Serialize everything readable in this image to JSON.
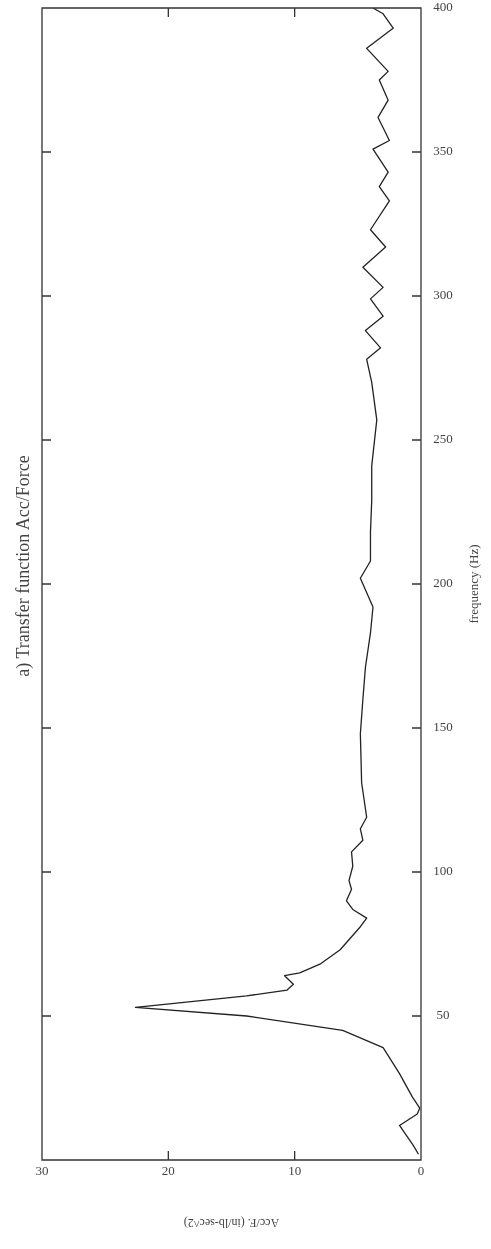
{
  "chart_data": {
    "type": "line",
    "title": "a) Transfer function Acc/Force",
    "xlabel": "Acc/F. (in/lb-sec^2)",
    "ylabel": "frequency (Hz)",
    "xlim": [
      30,
      0
    ],
    "xticks": [
      0,
      10,
      20,
      30
    ],
    "ylim": [
      0,
      400
    ],
    "yticks": [
      50,
      100,
      150,
      200,
      250,
      300,
      350,
      400
    ],
    "marker": "none",
    "line_style": "solid",
    "series": [
      {
        "color": "#222222",
        "x": [
          0.2,
          0.6,
          1.7,
          0.3,
          0.1,
          0.7,
          1.7,
          3.0,
          6.2,
          13.8,
          22.6,
          13.8,
          10.6,
          10.1,
          10.8,
          9.6,
          8.0,
          6.4,
          4.8,
          4.3,
          5.4,
          5.9,
          5.5,
          5.7,
          5.4,
          5.5,
          4.6,
          4.8,
          4.3,
          4.7,
          4.8,
          4.6,
          4.4,
          4.0,
          3.8,
          4.8,
          4.0,
          4.0,
          3.9,
          3.9,
          3.5,
          3.9,
          4.3,
          3.2,
          4.4,
          3.0,
          4.0,
          3.0,
          4.6,
          2.8,
          4.0,
          2.5,
          3.3,
          2.6,
          3.8,
          2.5,
          3.4,
          2.6,
          3.3,
          2.6,
          4.3,
          2.5,
          2.2,
          3.0,
          3.8
        ],
        "values": [
          2,
          5,
          12,
          16,
          18,
          22,
          30,
          39,
          45,
          50,
          53,
          57,
          59,
          61,
          64,
          65,
          68,
          73,
          81,
          84,
          87,
          90,
          94,
          97,
          102,
          107,
          111,
          115,
          119,
          131,
          148,
          160,
          171,
          183,
          192,
          202,
          208,
          218,
          229,
          241,
          257,
          270,
          278,
          282,
          288,
          293,
          299,
          303,
          310,
          317,
          323,
          333,
          338,
          343,
          351,
          354,
          362,
          368,
          375,
          378,
          386,
          392,
          393,
          398,
          400
        ]
      }
    ]
  }
}
